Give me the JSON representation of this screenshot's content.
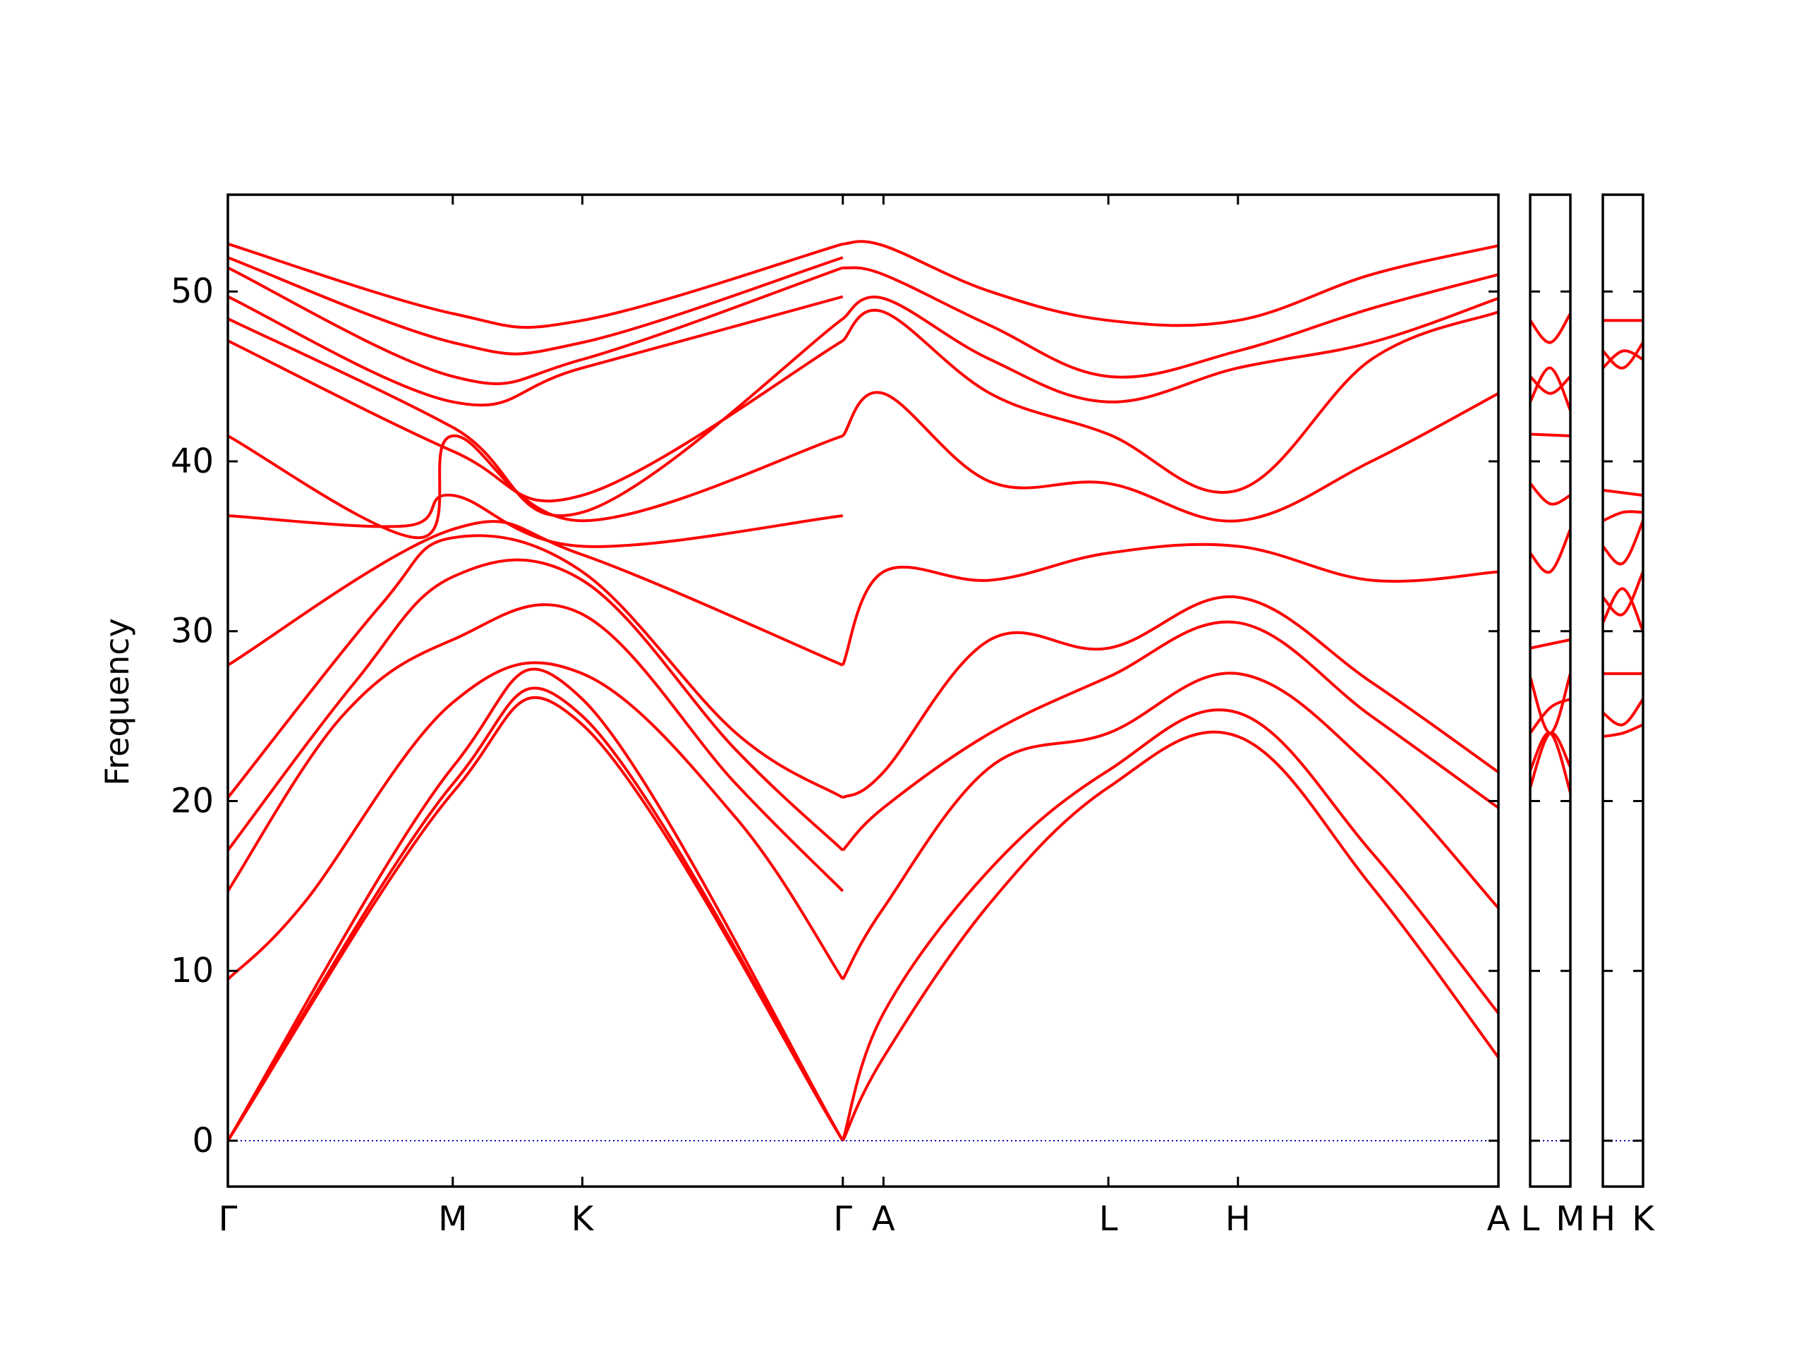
{
  "chart_data": {
    "type": "line",
    "ylabel": "Frequency",
    "ylim": [
      -2.7,
      55.7
    ],
    "yticks": [
      0,
      10,
      20,
      30,
      40,
      50
    ],
    "band_color": "#ff0000",
    "zero_line_color": "#0000cc",
    "panels": [
      {
        "id": "main",
        "xlim": [
          0,
          1000
        ],
        "ticks": [
          {
            "x": 0,
            "label": "Γ"
          },
          {
            "x": 177,
            "label": "M"
          },
          {
            "x": 279,
            "label": "K"
          },
          {
            "x": 484,
            "label": "Γ"
          },
          {
            "x": 516,
            "label": "A"
          },
          {
            "x": 693,
            "label": "L"
          },
          {
            "x": 795,
            "label": "H"
          },
          {
            "x": 1000,
            "label": "A"
          }
        ]
      },
      {
        "id": "lm",
        "xlim": [
          0,
          1
        ],
        "ticks": [
          {
            "x": 0,
            "label": "L"
          },
          {
            "x": 1,
            "label": "M"
          }
        ]
      },
      {
        "id": "hk",
        "xlim": [
          0,
          1
        ],
        "ticks": [
          {
            "x": 0,
            "label": "H"
          },
          {
            "x": 1,
            "label": "K"
          }
        ]
      }
    ],
    "series": [
      {
        "panel": "main",
        "x": [
          0,
          177,
          279,
          484
        ],
        "y": [
          0,
          20.5,
          24.5,
          0
        ]
      },
      {
        "panel": "main",
        "x": [
          0,
          177,
          279,
          484
        ],
        "y": [
          0,
          21,
          25,
          0
        ]
      },
      {
        "panel": "main",
        "x": [
          0,
          177,
          279,
          484
        ],
        "y": [
          0,
          22,
          26,
          0
        ]
      },
      {
        "panel": "main",
        "x": [
          0,
          60,
          177,
          279,
          400,
          484
        ],
        "y": [
          9.5,
          14,
          25.8,
          27.5,
          19,
          9.5
        ]
      },
      {
        "panel": "main",
        "x": [
          0,
          90,
          177,
          279,
          400,
          484
        ],
        "y": [
          14.7,
          25,
          29.5,
          31,
          21,
          14.7
        ]
      },
      {
        "panel": "main",
        "x": [
          0,
          100,
          177,
          279,
          400,
          484
        ],
        "y": [
          17.1,
          27,
          33.2,
          33,
          23,
          17.1
        ]
      },
      {
        "panel": "main",
        "x": [
          0,
          120,
          177,
          279,
          400,
          484
        ],
        "y": [
          20.2,
          31.5,
          35.5,
          33.5,
          24,
          20.2
        ]
      },
      {
        "panel": "main",
        "x": [
          0,
          177,
          279,
          484
        ],
        "y": [
          28,
          36,
          34.5,
          28
        ]
      },
      {
        "panel": "main",
        "x": [
          0,
          140,
          177,
          279,
          484
        ],
        "y": [
          36.8,
          36.2,
          38,
          35,
          36.8
        ]
      },
      {
        "panel": "main",
        "x": [
          0,
          150,
          177,
          279,
          484
        ],
        "y": [
          41.5,
          35.5,
          41.5,
          36.5,
          41.5
        ]
      },
      {
        "panel": "main",
        "x": [
          0,
          177,
          279,
          484
        ],
        "y": [
          47.1,
          40.6,
          38,
          47.1
        ]
      },
      {
        "panel": "main",
        "x": [
          0,
          177,
          279,
          484
        ],
        "y": [
          48.4,
          42,
          37,
          48.4
        ]
      },
      {
        "panel": "main",
        "x": [
          0,
          177,
          279,
          484
        ],
        "y": [
          49.7,
          43.5,
          45.5,
          49.7
        ]
      },
      {
        "panel": "main",
        "x": [
          0,
          177,
          279,
          484
        ],
        "y": [
          51.4,
          45,
          46,
          51.4
        ]
      },
      {
        "panel": "main",
        "x": [
          0,
          177,
          279,
          484
        ],
        "y": [
          52,
          47,
          47,
          52
        ]
      },
      {
        "panel": "main",
        "x": [
          0,
          177,
          279,
          484
        ],
        "y": [
          52.8,
          48.7,
          48.3,
          52.8
        ]
      },
      {
        "panel": "main",
        "x": [
          484,
          516,
          600,
          693,
          795,
          900,
          1000
        ],
        "y": [
          0,
          4.9,
          14,
          20.8,
          23.8,
          15,
          4.9
        ]
      },
      {
        "panel": "main",
        "x": [
          484,
          516,
          600,
          693,
          795,
          900,
          1000
        ],
        "y": [
          0,
          7.5,
          16,
          21.8,
          25.2,
          17,
          7.5
        ]
      },
      {
        "panel": "main",
        "x": [
          484,
          516,
          600,
          693,
          795,
          900,
          1000
        ],
        "y": [
          9.5,
          13.7,
          22,
          24,
          27.5,
          22,
          13.7
        ]
      },
      {
        "panel": "main",
        "x": [
          484,
          516,
          600,
          693,
          795,
          900,
          1000
        ],
        "y": [
          17.1,
          19.6,
          24,
          27.3,
          30.5,
          25,
          19.6
        ]
      },
      {
        "panel": "main",
        "x": [
          484,
          516,
          600,
          693,
          795,
          900,
          1000
        ],
        "y": [
          20.2,
          21.7,
          29.5,
          29,
          32,
          27,
          21.7
        ]
      },
      {
        "panel": "main",
        "x": [
          484,
          516,
          600,
          693,
          795,
          900,
          1000
        ],
        "y": [
          28,
          33.5,
          33,
          34.6,
          35,
          33,
          33.5
        ]
      },
      {
        "panel": "main",
        "x": [
          484,
          516,
          600,
          693,
          795,
          900,
          1000
        ],
        "y": [
          41.5,
          44,
          38.8,
          38.7,
          36.5,
          40,
          44
        ]
      },
      {
        "panel": "main",
        "x": [
          484,
          516,
          600,
          693,
          795,
          900,
          1000
        ],
        "y": [
          47.1,
          48.8,
          44,
          41.6,
          38.3,
          46,
          48.8
        ]
      },
      {
        "panel": "main",
        "x": [
          484,
          516,
          600,
          693,
          795,
          900,
          1000
        ],
        "y": [
          48.4,
          49.6,
          46,
          43.5,
          45.5,
          47,
          49.6
        ]
      },
      {
        "panel": "main",
        "x": [
          484,
          516,
          600,
          693,
          795,
          900,
          1000
        ],
        "y": [
          51.4,
          51,
          48,
          45,
          46.5,
          49,
          51
        ]
      },
      {
        "panel": "main",
        "x": [
          484,
          516,
          600,
          693,
          795,
          900,
          1000
        ],
        "y": [
          52.8,
          52.7,
          50,
          48.3,
          48.3,
          51,
          52.7
        ]
      },
      {
        "panel": "lm",
        "x": [
          0,
          0.5,
          1
        ],
        "y": [
          20.8,
          24,
          22
        ]
      },
      {
        "panel": "lm",
        "x": [
          0,
          0.5,
          1
        ],
        "y": [
          21.8,
          24,
          20.5
        ]
      },
      {
        "panel": "lm",
        "x": [
          0,
          0.5,
          1
        ],
        "y": [
          24,
          25.5,
          26
        ]
      },
      {
        "panel": "lm",
        "x": [
          0,
          0.5,
          1
        ],
        "y": [
          27.3,
          24,
          27.5
        ]
      },
      {
        "panel": "lm",
        "x": [
          0,
          1
        ],
        "y": [
          29,
          29.5
        ]
      },
      {
        "panel": "lm",
        "x": [
          0,
          0.5,
          1
        ],
        "y": [
          34.6,
          33.5,
          36
        ]
      },
      {
        "panel": "lm",
        "x": [
          0,
          0.5,
          1
        ],
        "y": [
          38.7,
          37.5,
          38
        ]
      },
      {
        "panel": "lm",
        "x": [
          0,
          1
        ],
        "y": [
          41.6,
          41.5
        ]
      },
      {
        "panel": "lm",
        "x": [
          0,
          0.5,
          1
        ],
        "y": [
          43.5,
          45.5,
          43
        ]
      },
      {
        "panel": "lm",
        "x": [
          0,
          0.5,
          1
        ],
        "y": [
          45,
          44,
          45
        ]
      },
      {
        "panel": "lm",
        "x": [
          0,
          0.5,
          1
        ],
        "y": [
          48.3,
          47,
          48.7
        ]
      },
      {
        "panel": "hk",
        "x": [
          0,
          0.5,
          1
        ],
        "y": [
          23.8,
          24,
          24.5
        ]
      },
      {
        "panel": "hk",
        "x": [
          0,
          0.5,
          1
        ],
        "y": [
          25.2,
          24.5,
          26
        ]
      },
      {
        "panel": "hk",
        "x": [
          0,
          1
        ],
        "y": [
          27.5,
          27.5
        ]
      },
      {
        "panel": "hk",
        "x": [
          0,
          0.5,
          1
        ],
        "y": [
          30.5,
          32.5,
          30
        ]
      },
      {
        "panel": "hk",
        "x": [
          0,
          0.5,
          1
        ],
        "y": [
          32,
          31,
          33.5
        ]
      },
      {
        "panel": "hk",
        "x": [
          0,
          0.5,
          1
        ],
        "y": [
          35,
          34,
          36.5
        ]
      },
      {
        "panel": "hk",
        "x": [
          0,
          0.5,
          1
        ],
        "y": [
          36.5,
          37,
          37
        ]
      },
      {
        "panel": "hk",
        "x": [
          0,
          1
        ],
        "y": [
          38.3,
          38
        ]
      },
      {
        "panel": "hk",
        "x": [
          0,
          0.5,
          1
        ],
        "y": [
          45.5,
          46.5,
          46
        ]
      },
      {
        "panel": "hk",
        "x": [
          0,
          0.5,
          1
        ],
        "y": [
          46.5,
          45.5,
          47
        ]
      },
      {
        "panel": "hk",
        "x": [
          0,
          1
        ],
        "y": [
          48.3,
          48.3
        ]
      }
    ]
  }
}
